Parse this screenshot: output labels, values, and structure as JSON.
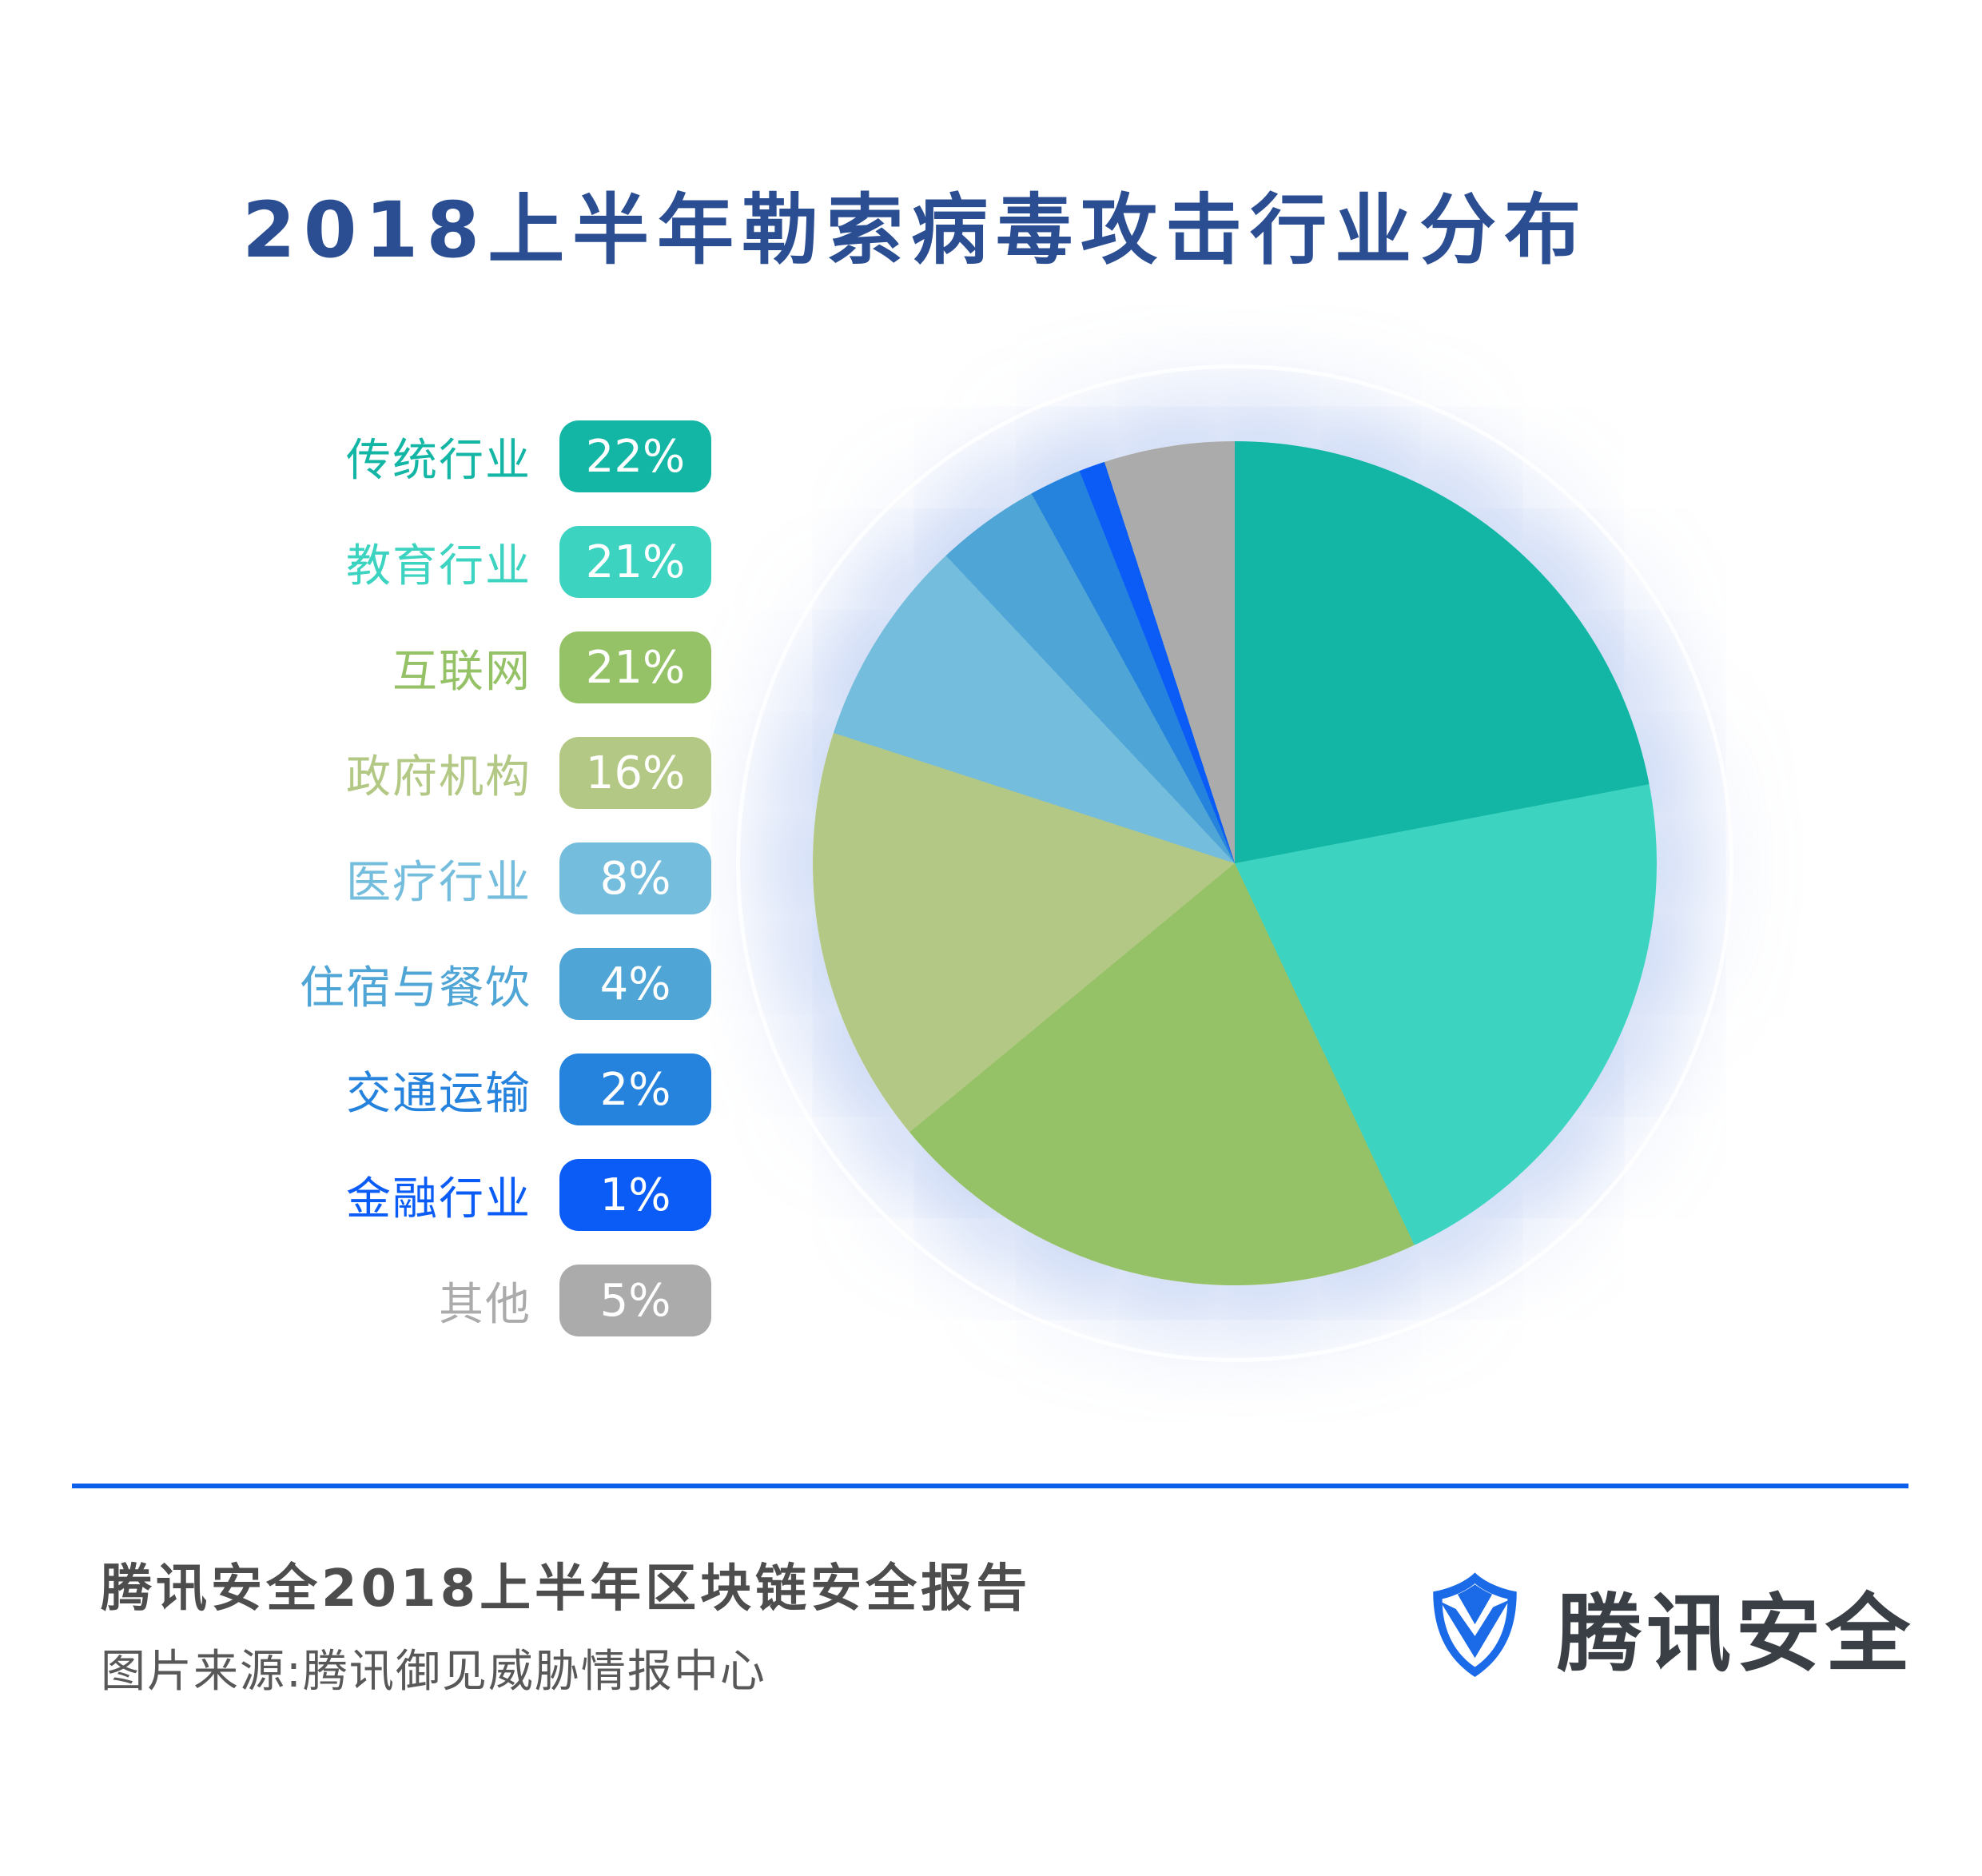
{
  "page": {
    "background": "#FFFFFF"
  },
  "title": {
    "text": "2018上半年勒索病毒攻击行业分布",
    "color": "#2B4E93"
  },
  "chart_data": {
    "type": "pie",
    "title": "2018上半年勒索病毒攻击行业分布",
    "start_angle_deg": 0,
    "direction": "clockwise",
    "legend_position": "left",
    "total_pct": 100,
    "items": [
      {
        "label": "传统行业",
        "value_pct": 22,
        "display": "22%",
        "color": "#13B6A5"
      },
      {
        "label": "教育行业",
        "value_pct": 21,
        "display": "21%",
        "color": "#3DD3C1"
      },
      {
        "label": "互联网",
        "value_pct": 21,
        "display": "21%",
        "color": "#95C167"
      },
      {
        "label": "政府机构",
        "value_pct": 16,
        "display": "16%",
        "color": "#B3C884"
      },
      {
        "label": "医疗行业",
        "value_pct": 8,
        "display": "8%",
        "color": "#75BDDD"
      },
      {
        "label": "住宿与餐饮",
        "value_pct": 4,
        "display": "4%",
        "color": "#4FA5D5"
      },
      {
        "label": "交通运输",
        "value_pct": 2,
        "display": "2%",
        "color": "#2583DD"
      },
      {
        "label": "金融行业",
        "value_pct": 1,
        "display": "1%",
        "color": "#0B5CF7"
      },
      {
        "label": "其他",
        "value_pct": 5,
        "display": "5%",
        "color": "#ABABAB"
      }
    ]
  },
  "footer": {
    "report_title": "腾讯安全2018上半年区块链安全报告",
    "source": "图片来源:腾讯御见威胁情报中心",
    "brand_name": "腾讯安全",
    "divider_color": "#0B5FEB",
    "shield_icon_color": "#1B6BE8"
  }
}
